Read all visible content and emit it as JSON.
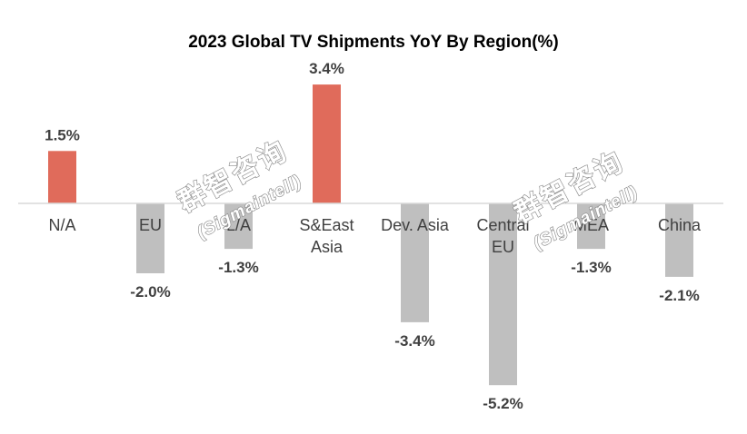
{
  "chart_data": {
    "type": "bar",
    "title": "2023 Global TV Shipments YoY By Region(%)",
    "categories": [
      [
        "N/A"
      ],
      [
        "EU"
      ],
      [
        "L/A"
      ],
      [
        "S&East",
        "Asia"
      ],
      [
        "Dev. Asia"
      ],
      [
        "Central",
        "EU"
      ],
      [
        "MEA"
      ],
      [
        "China"
      ]
    ],
    "values": [
      1.5,
      -2.0,
      -1.3,
      3.4,
      -3.4,
      -5.2,
      -1.3,
      -2.1
    ],
    "data_labels": [
      "1.5%",
      "-2.0%",
      "-1.3%",
      "3.4%",
      "-3.4%",
      "-5.2%",
      "-1.3%",
      "-2.1%"
    ],
    "unit": "%",
    "ylim": [
      -6,
      4
    ],
    "grid": false,
    "legend": "none",
    "colors": {
      "positive": "#e06b5b",
      "negative": "#bfbfbf",
      "axis": "#d9d9d9"
    }
  },
  "watermarks": [
    {
      "cn": "群智咨询",
      "en": "(Sigmaintell)"
    },
    {
      "cn": "群智咨询",
      "en": "(Sigmaintell)"
    }
  ]
}
